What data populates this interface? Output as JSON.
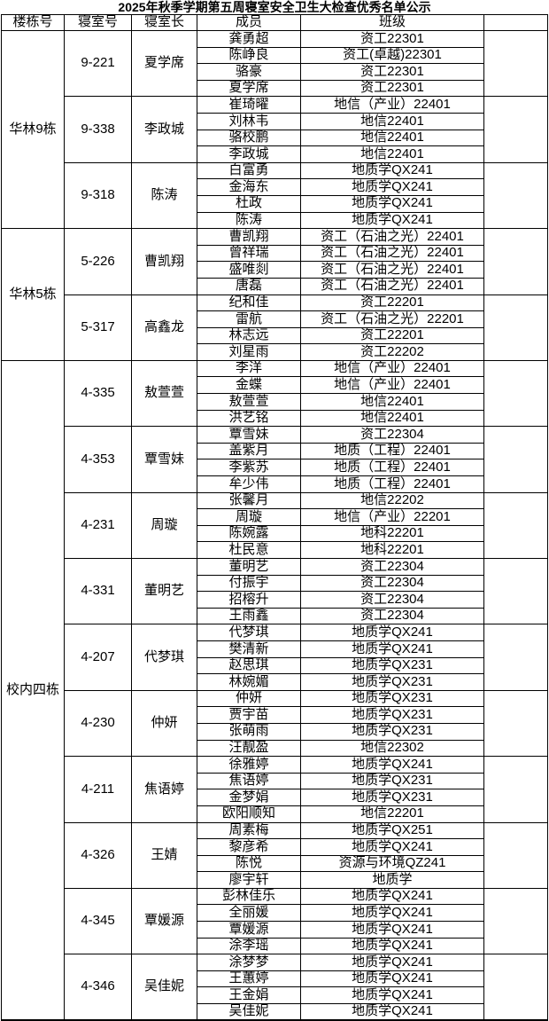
{
  "title": "2025年秋季学期第五周寝室安全卫生大检查优秀名单公示",
  "colors": {
    "text": "#000000",
    "border": "#000000",
    "background": "#ffffff"
  },
  "table": {
    "headers": [
      "楼栋号",
      "寝室号",
      "寝室长",
      "成员",
      "班级",
      ""
    ],
    "buildings": [
      {
        "name": "华林9栋",
        "rooms": [
          {
            "room": "9-221",
            "leader": "夏学席",
            "members": [
              {
                "name": "龚勇超",
                "class": "资工22301"
              },
              {
                "name": "陈峥良",
                "class": "资工(卓越)22301"
              },
              {
                "name": "骆豪",
                "class": "资工22301"
              },
              {
                "name": "夏学席",
                "class": "资工22301"
              }
            ]
          },
          {
            "room": "9-338",
            "leader": "李政城",
            "members": [
              {
                "name": "崔琦曜",
                "class": "地信（产业）22401"
              },
              {
                "name": "刘林韦",
                "class": "地信22401"
              },
              {
                "name": "骆校鹏",
                "class": "地信22401"
              },
              {
                "name": "李政城",
                "class": "地信22401"
              }
            ]
          },
          {
            "room": "9-318",
            "leader": "陈涛",
            "members": [
              {
                "name": "白富勇",
                "class": "地质学QX241"
              },
              {
                "name": "金海东",
                "class": "地质学QX241"
              },
              {
                "name": "杜政",
                "class": "地质学QX241"
              },
              {
                "name": "陈涛",
                "class": "地质学QX241"
              }
            ]
          }
        ]
      },
      {
        "name": "华林5栋",
        "rooms": [
          {
            "room": "5-226",
            "leader": "曹凯翔",
            "members": [
              {
                "name": "曹凯翔",
                "class": "资工（石油之光）22401"
              },
              {
                "name": "曾祥瑞",
                "class": "资工（石油之光）22401"
              },
              {
                "name": "盛唯剡",
                "class": "资工（石油之光）22401"
              },
              {
                "name": "唐磊",
                "class": "资工（石油之光）22401"
              }
            ]
          },
          {
            "room": "5-317",
            "leader": "高鑫龙",
            "members": [
              {
                "name": "纪和佳",
                "class": "资工22201"
              },
              {
                "name": "雷航",
                "class": "资工（石油之光）22201"
              },
              {
                "name": "林志远",
                "class": "资工22201"
              },
              {
                "name": "刘星雨",
                "class": "资工22202"
              }
            ]
          }
        ]
      },
      {
        "name": "校内四栋",
        "rooms": [
          {
            "room": "4-335",
            "leader": "敖萱萱",
            "members": [
              {
                "name": "李洋",
                "class": "地信（产业）22401"
              },
              {
                "name": "金蝶",
                "class": "地信（产业）22401"
              },
              {
                "name": "敖萱萱",
                "class": "地信22401"
              },
              {
                "name": "洪艺铭",
                "class": "地信22401"
              }
            ]
          },
          {
            "room": "4-353",
            "leader": "覃雪妹",
            "members": [
              {
                "name": "覃雪妹",
                "class": "资工22304"
              },
              {
                "name": "盖紫月",
                "class": "地质（工程）22401"
              },
              {
                "name": "李紫苏",
                "class": "地质（工程）22401"
              },
              {
                "name": "牟少伟",
                "class": "地质（工程）22401"
              }
            ]
          },
          {
            "room": "4-231",
            "leader": "周璇",
            "members": [
              {
                "name": "张馨月",
                "class": "地信22202"
              },
              {
                "name": "周璇",
                "class": "地信（产业）22201"
              },
              {
                "name": "陈婉露",
                "class": "地科22201"
              },
              {
                "name": "杜民意",
                "class": "地科22201"
              }
            ]
          },
          {
            "room": "4-331",
            "leader": "董明艺",
            "members": [
              {
                "name": "董明艺",
                "class": "资工22304"
              },
              {
                "name": "付振宇",
                "class": "资工22304"
              },
              {
                "name": "招榕升",
                "class": "资工22304"
              },
              {
                "name": "王雨鑫",
                "class": "资工22304"
              }
            ]
          },
          {
            "room": "4-207",
            "leader": "代梦琪",
            "members": [
              {
                "name": "代梦琪",
                "class": "地质学QX241"
              },
              {
                "name": "樊清新",
                "class": "地质学QX241"
              },
              {
                "name": "赵思琪",
                "class": "地质学QX231"
              },
              {
                "name": "林婉媚",
                "class": "地质学QX231"
              }
            ]
          },
          {
            "room": "4-230",
            "leader": "仲妍",
            "members": [
              {
                "name": "仲妍",
                "class": "地质学QX231"
              },
              {
                "name": "贾宇苗",
                "class": "地质学QX231"
              },
              {
                "name": "张萌雨",
                "class": "地质学QX231"
              },
              {
                "name": "汪靓盈",
                "class": "地信22302"
              }
            ]
          },
          {
            "room": "4-211",
            "leader": "焦语婷",
            "members": [
              {
                "name": "徐雅婷",
                "class": "地质学QX241"
              },
              {
                "name": "焦语婷",
                "class": "地质学QX231"
              },
              {
                "name": "金梦娟",
                "class": "地质学QX231"
              },
              {
                "name": "欧阳顺知",
                "class": "地信22201"
              }
            ]
          },
          {
            "room": "4-326",
            "leader": "王婧",
            "members": [
              {
                "name": "周素梅",
                "class": "地质学QX251"
              },
              {
                "name": "黎彦希",
                "class": "地质学QX241"
              },
              {
                "name": "陈悦",
                "class": "资源与环境QZ241"
              },
              {
                "name": "廖宇轩",
                "class": "地质学"
              }
            ]
          },
          {
            "room": "4-345",
            "leader": "覃媛源",
            "members": [
              {
                "name": "彭林佳乐",
                "class": "地质学QX241"
              },
              {
                "name": "全丽媛",
                "class": "地质学QX241"
              },
              {
                "name": "覃媛源",
                "class": "地质学QX241"
              },
              {
                "name": "涂李瑶",
                "class": "地质学QX241"
              }
            ]
          },
          {
            "room": "4-346",
            "leader": "吴佳妮",
            "members": [
              {
                "name": "涂梦梦",
                "class": "地质学QX241"
              },
              {
                "name": "王蕙婷",
                "class": "地质学QX241"
              },
              {
                "name": "王金娟",
                "class": "地质学QX241"
              },
              {
                "name": "吴佳妮",
                "class": "地质学QX241"
              }
            ]
          }
        ]
      }
    ]
  }
}
